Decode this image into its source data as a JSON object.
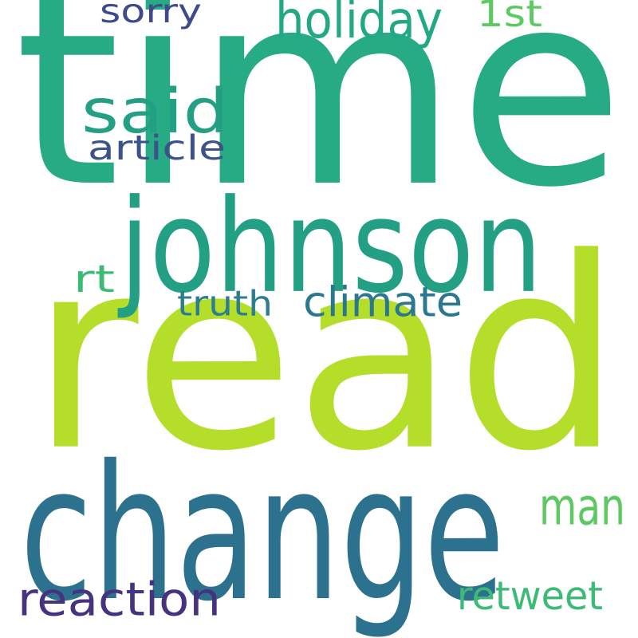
{
  "words": [
    {
      "id": "time",
      "text": "time",
      "color": "#26ab84"
    },
    {
      "id": "read",
      "text": "read",
      "color": "#b5de2b"
    },
    {
      "id": "change",
      "text": "change",
      "color": "#2c728e"
    },
    {
      "id": "johnson",
      "text": "johnson",
      "color": "#23a083"
    },
    {
      "id": "said",
      "text": "said",
      "color": "#23a083"
    },
    {
      "id": "holiday",
      "text": "holiday",
      "color": "#22a884"
    },
    {
      "id": "man",
      "text": "man",
      "color": "#5ec962"
    },
    {
      "id": "reaction",
      "text": "reaction",
      "color": "#46327e"
    },
    {
      "id": "climate",
      "text": "climate",
      "color": "#2a788e"
    },
    {
      "id": "retweet",
      "text": "retweet",
      "color": "#3bbb75"
    },
    {
      "id": "article",
      "text": "article",
      "color": "#3b528b"
    },
    {
      "id": "sorry",
      "text": "sorry",
      "color": "#3e4a89"
    },
    {
      "id": "1st",
      "text": "1st",
      "color": "#5ec962"
    },
    {
      "id": "rt",
      "text": "rt",
      "color": "#3bbb75"
    },
    {
      "id": "truth",
      "text": "truth",
      "color": "#2c7d8e"
    }
  ]
}
